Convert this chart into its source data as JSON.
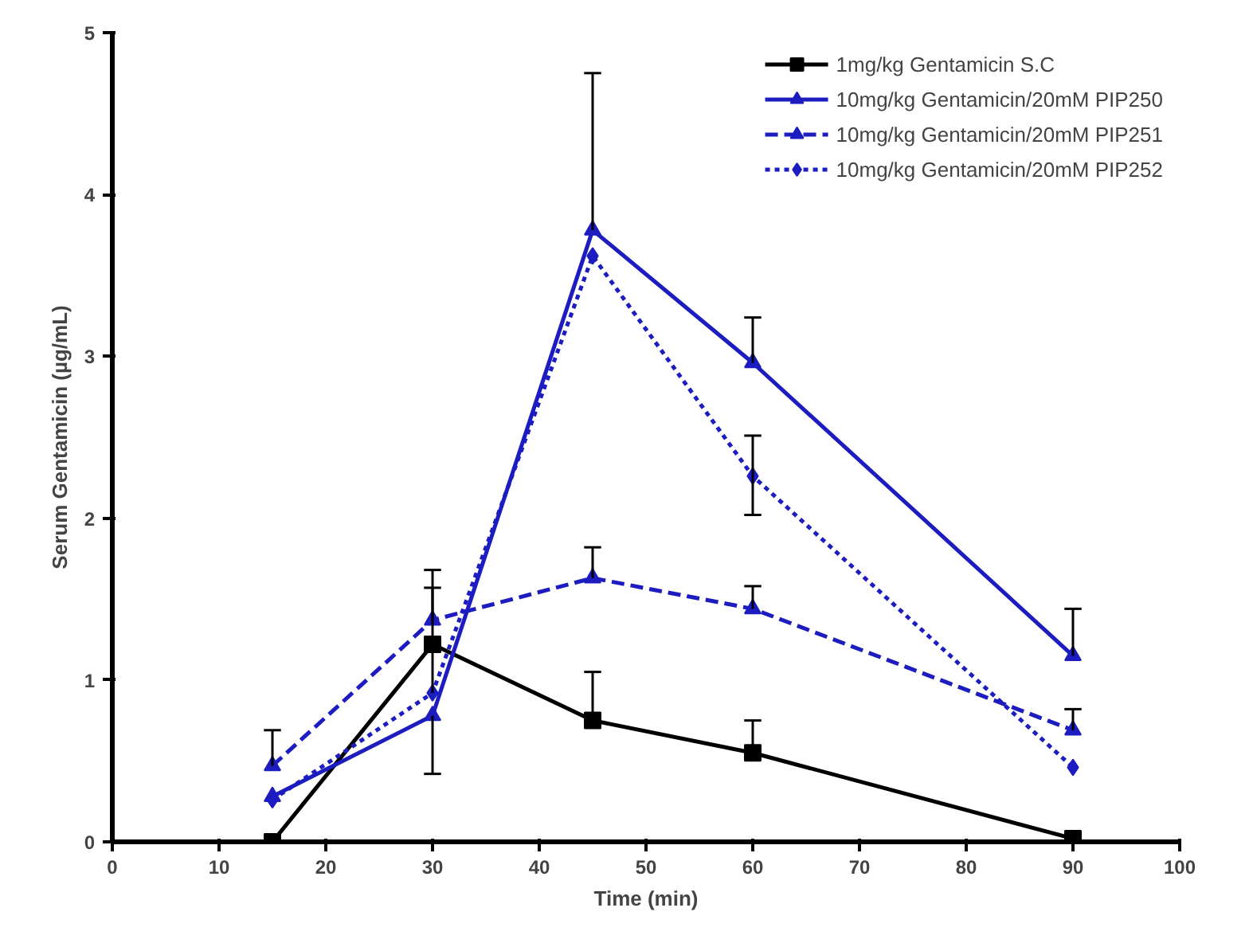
{
  "chart_data": {
    "type": "line",
    "xlabel": "Time (min)",
    "ylabel": "Serum Gentamicin (µg/mL)",
    "x": [
      15,
      30,
      45,
      60,
      90
    ],
    "series": [
      {
        "name": "1mg/kg Gentamicin S.C",
        "color": "#000000",
        "marker": "square",
        "line_style": "solid",
        "values": [
          0,
          1.22,
          0.75,
          0.55,
          0.02
        ],
        "errors": [
          null,
          null,
          [
            0.75,
            1.05
          ],
          [
            0.55,
            0.75
          ],
          null
        ]
      },
      {
        "name": "10mg/kg Gentamicin/20mM PIP250",
        "color": "#1c1cc0",
        "marker": "triangle",
        "line_style": "solid",
        "values": [
          0.28,
          0.78,
          3.78,
          2.96,
          1.15
        ],
        "errors": [
          null,
          [
            0.42,
            0.78
          ],
          [
            3.78,
            4.75
          ],
          [
            2.96,
            3.24
          ],
          [
            1.15,
            1.44
          ]
        ]
      },
      {
        "name": "10mg/kg Gentamicin/20mM PIP251",
        "color": "#1c1cc0",
        "marker": "triangle",
        "line_style": "dashed",
        "values": [
          0.47,
          1.37,
          1.63,
          1.44,
          0.69
        ],
        "errors": [
          [
            0.47,
            0.69
          ],
          [
            1.37,
            1.68
          ],
          [
            1.63,
            1.82
          ],
          [
            1.44,
            1.58
          ],
          [
            0.69,
            0.82
          ]
        ]
      },
      {
        "name": "10mg/kg Gentamicin/20mM PIP252",
        "color": "#1c1cc0",
        "marker": "diamond",
        "line_style": "dotted",
        "values": [
          0.26,
          0.92,
          3.62,
          2.26,
          0.46
        ],
        "errors": [
          null,
          [
            0.92,
            1.57
          ],
          null,
          [
            2.02,
            2.51
          ],
          null
        ]
      }
    ],
    "xlim": [
      0,
      100
    ],
    "xticks": [
      0,
      10,
      20,
      30,
      40,
      50,
      60,
      70,
      80,
      90,
      100
    ],
    "ylim": [
      0,
      5
    ],
    "yticks": [
      0,
      1,
      2,
      3,
      4,
      5
    ],
    "grid": false,
    "legend": "top right"
  }
}
